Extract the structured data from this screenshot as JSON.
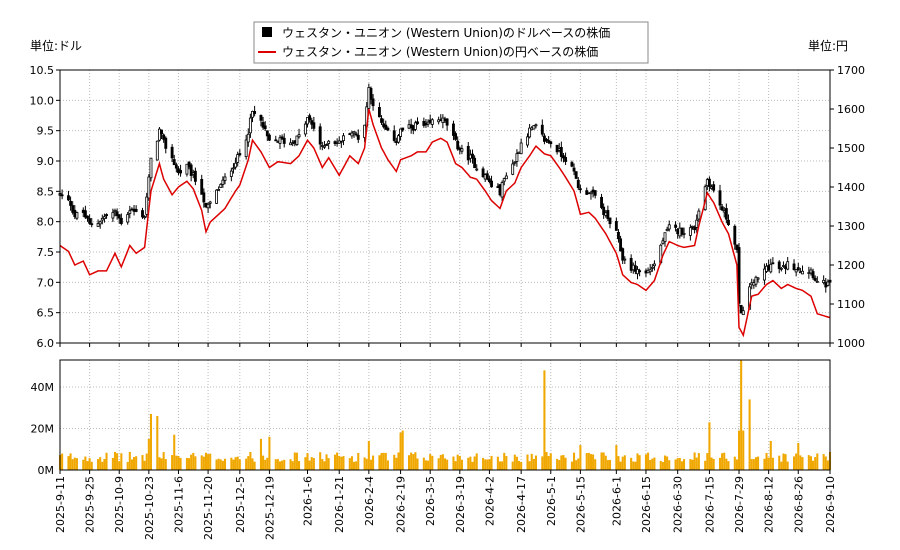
{
  "chart_data": {
    "type": "candlestick-with-volume",
    "legend": [
      {
        "name": "ウェスタン・ユニオン (Western Union)のドルベースの株価",
        "color": "#000000",
        "marker": "square"
      },
      {
        "name": "ウェスタン・ユニオン (Western Union)の円ベースの株価",
        "color": "#dd0000",
        "marker": "line"
      }
    ],
    "units": {
      "left": "単位:ドル",
      "right": "単位:円"
    },
    "price_axis": {
      "left_min": 6.0,
      "left_max": 10.5,
      "left_step": 0.5,
      "right_min": 1000,
      "right_max": 1700,
      "right_step": 100
    },
    "volume_axis": {
      "min": 0,
      "max": 53000000,
      "ticks": [
        {
          "value": 0,
          "label": "0M"
        },
        {
          "value": 20000000,
          "label": "20M"
        },
        {
          "value": 40000000,
          "label": "40M"
        }
      ]
    },
    "x_start": "2025-09-11",
    "x_end": "2026-09-10",
    "date_ticks": [
      "2025-9-11",
      "2025-9-25",
      "2025-10-9",
      "2025-10-23",
      "2025-11-6",
      "2025-11-20",
      "2025-12-5",
      "2025-12-19",
      "2026-1-6",
      "2026-1-21",
      "2026-2-4",
      "2026-2-19",
      "2026-3-5",
      "2026-3-19",
      "2026-4-2",
      "2026-4-17",
      "2026-5-1",
      "2026-5-15",
      "2026-6-1",
      "2026-6-15",
      "2026-6-30",
      "2026-7-15",
      "2026-7-29",
      "2026-8-12",
      "2026-8-26",
      "2026-9-10"
    ],
    "usd_close_path": [
      [
        "2025-09-11",
        8.45
      ],
      [
        "2025-09-16",
        8.3
      ],
      [
        "2025-09-18",
        8.1
      ],
      [
        "2025-09-22",
        8.15
      ],
      [
        "2025-09-25",
        7.95
      ],
      [
        "2025-09-29",
        8.0
      ],
      [
        "2025-10-03",
        8.1
      ],
      [
        "2025-10-07",
        8.15
      ],
      [
        "2025-10-10",
        8.0
      ],
      [
        "2025-10-14",
        8.2
      ],
      [
        "2025-10-17",
        8.15
      ],
      [
        "2025-10-21",
        8.1
      ],
      [
        "2025-10-24",
        9.0
      ],
      [
        "2025-10-28",
        9.5
      ],
      [
        "2025-10-30",
        9.3
      ],
      [
        "2025-11-03",
        9.05
      ],
      [
        "2025-11-06",
        8.8
      ],
      [
        "2025-11-10",
        8.9
      ],
      [
        "2025-11-13",
        8.75
      ],
      [
        "2025-11-17",
        8.5
      ],
      [
        "2025-11-19",
        8.2
      ],
      [
        "2025-11-21",
        8.3
      ],
      [
        "2025-11-25",
        8.55
      ],
      [
        "2025-11-28",
        8.7
      ],
      [
        "2025-12-03",
        9.0
      ],
      [
        "2025-12-05",
        9.1
      ],
      [
        "2025-12-09",
        9.5
      ],
      [
        "2025-12-11",
        9.8
      ],
      [
        "2025-12-15",
        9.65
      ],
      [
        "2025-12-19",
        9.3
      ],
      [
        "2025-12-23",
        9.35
      ],
      [
        "2025-12-29",
        9.3
      ],
      [
        "2026-01-02",
        9.4
      ],
      [
        "2026-01-06",
        9.7
      ],
      [
        "2026-01-09",
        9.55
      ],
      [
        "2026-01-13",
        9.2
      ],
      [
        "2026-01-16",
        9.35
      ],
      [
        "2026-01-21",
        9.3
      ],
      [
        "2026-01-26",
        9.5
      ],
      [
        "2026-01-30",
        9.4
      ],
      [
        "2026-02-02",
        9.6
      ],
      [
        "2026-02-04",
        10.2
      ],
      [
        "2026-02-06",
        9.95
      ],
      [
        "2026-02-10",
        9.6
      ],
      [
        "2026-02-13",
        9.45
      ],
      [
        "2026-02-17",
        9.35
      ],
      [
        "2026-02-19",
        9.5
      ],
      [
        "2026-02-24",
        9.55
      ],
      [
        "2026-02-27",
        9.6
      ],
      [
        "2026-03-03",
        9.55
      ],
      [
        "2026-03-06",
        9.65
      ],
      [
        "2026-03-10",
        9.7
      ],
      [
        "2026-03-13",
        9.6
      ],
      [
        "2026-03-17",
        9.3
      ],
      [
        "2026-03-20",
        9.15
      ],
      [
        "2026-03-24",
        9.05
      ],
      [
        "2026-03-27",
        8.9
      ],
      [
        "2026-03-31",
        8.75
      ],
      [
        "2026-04-03",
        8.6
      ],
      [
        "2026-04-07",
        8.5
      ],
      [
        "2026-04-10",
        8.8
      ],
      [
        "2026-04-14",
        9.0
      ],
      [
        "2026-04-17",
        9.3
      ],
      [
        "2026-04-21",
        9.5
      ],
      [
        "2026-04-24",
        9.55
      ],
      [
        "2026-04-28",
        9.35
      ],
      [
        "2026-05-01",
        9.3
      ],
      [
        "2026-05-05",
        9.15
      ],
      [
        "2026-05-08",
        9.05
      ],
      [
        "2026-05-12",
        8.8
      ],
      [
        "2026-05-15",
        8.5
      ],
      [
        "2026-05-19",
        8.5
      ],
      [
        "2026-05-22",
        8.4
      ],
      [
        "2026-05-27",
        8.1
      ],
      [
        "2026-06-01",
        7.8
      ],
      [
        "2026-06-04",
        7.4
      ],
      [
        "2026-06-08",
        7.25
      ],
      [
        "2026-06-11",
        7.2
      ],
      [
        "2026-06-15",
        7.15
      ],
      [
        "2026-06-19",
        7.3
      ],
      [
        "2026-06-23",
        7.7
      ],
      [
        "2026-06-26",
        7.9
      ],
      [
        "2026-06-30",
        7.85
      ],
      [
        "2026-07-03",
        7.85
      ],
      [
        "2026-07-08",
        7.9
      ],
      [
        "2026-07-10",
        8.2
      ],
      [
        "2026-07-14",
        8.7
      ],
      [
        "2026-07-17",
        8.5
      ],
      [
        "2026-07-21",
        8.2
      ],
      [
        "2026-07-24",
        8.0
      ],
      [
        "2026-07-28",
        7.5
      ],
      [
        "2026-07-29",
        6.6
      ],
      [
        "2026-07-31",
        6.5
      ],
      [
        "2026-08-04",
        7.0
      ],
      [
        "2026-08-07",
        7.05
      ],
      [
        "2026-08-11",
        7.25
      ],
      [
        "2026-08-14",
        7.3
      ],
      [
        "2026-08-18",
        7.2
      ],
      [
        "2026-08-21",
        7.3
      ],
      [
        "2026-08-25",
        7.25
      ],
      [
        "2026-08-28",
        7.2
      ],
      [
        "2026-09-01",
        7.2
      ],
      [
        "2026-09-04",
        7.0
      ],
      [
        "2026-09-10",
        6.95
      ]
    ],
    "jpy_close_path": [
      [
        "2025-09-11",
        1250
      ],
      [
        "2025-09-15",
        1235
      ],
      [
        "2025-09-18",
        1200
      ],
      [
        "2025-09-22",
        1210
      ],
      [
        "2025-09-25",
        1175
      ],
      [
        "2025-09-29",
        1185
      ],
      [
        "2025-10-03",
        1185
      ],
      [
        "2025-10-07",
        1230
      ],
      [
        "2025-10-10",
        1195
      ],
      [
        "2025-10-14",
        1250
      ],
      [
        "2025-10-17",
        1230
      ],
      [
        "2025-10-21",
        1245
      ],
      [
        "2025-10-24",
        1390
      ],
      [
        "2025-10-28",
        1460
      ],
      [
        "2025-10-30",
        1420
      ],
      [
        "2025-11-03",
        1380
      ],
      [
        "2025-11-06",
        1400
      ],
      [
        "2025-11-10",
        1415
      ],
      [
        "2025-11-13",
        1395
      ],
      [
        "2025-11-17",
        1340
      ],
      [
        "2025-11-19",
        1285
      ],
      [
        "2025-11-21",
        1310
      ],
      [
        "2025-11-25",
        1330
      ],
      [
        "2025-11-28",
        1345
      ],
      [
        "2025-12-03",
        1390
      ],
      [
        "2025-12-05",
        1405
      ],
      [
        "2025-12-09",
        1470
      ],
      [
        "2025-12-11",
        1520
      ],
      [
        "2025-12-15",
        1490
      ],
      [
        "2025-12-19",
        1450
      ],
      [
        "2025-12-23",
        1465
      ],
      [
        "2025-12-29",
        1460
      ],
      [
        "2026-01-02",
        1480
      ],
      [
        "2026-01-06",
        1520
      ],
      [
        "2026-01-09",
        1500
      ],
      [
        "2026-01-13",
        1450
      ],
      [
        "2026-01-16",
        1475
      ],
      [
        "2026-01-21",
        1430
      ],
      [
        "2026-01-26",
        1480
      ],
      [
        "2026-01-30",
        1460
      ],
      [
        "2026-02-02",
        1500
      ],
      [
        "2026-02-04",
        1600
      ],
      [
        "2026-02-06",
        1560
      ],
      [
        "2026-02-10",
        1500
      ],
      [
        "2026-02-13",
        1470
      ],
      [
        "2026-02-17",
        1440
      ],
      [
        "2026-02-19",
        1470
      ],
      [
        "2026-02-24",
        1480
      ],
      [
        "2026-02-27",
        1490
      ],
      [
        "2026-03-03",
        1490
      ],
      [
        "2026-03-06",
        1515
      ],
      [
        "2026-03-10",
        1525
      ],
      [
        "2026-03-13",
        1515
      ],
      [
        "2026-03-17",
        1460
      ],
      [
        "2026-03-20",
        1450
      ],
      [
        "2026-03-24",
        1425
      ],
      [
        "2026-03-27",
        1420
      ],
      [
        "2026-03-31",
        1390
      ],
      [
        "2026-04-03",
        1365
      ],
      [
        "2026-04-07",
        1345
      ],
      [
        "2026-04-10",
        1390
      ],
      [
        "2026-04-14",
        1410
      ],
      [
        "2026-04-17",
        1450
      ],
      [
        "2026-04-21",
        1480
      ],
      [
        "2026-04-24",
        1505
      ],
      [
        "2026-04-28",
        1485
      ],
      [
        "2026-05-01",
        1480
      ],
      [
        "2026-05-05",
        1450
      ],
      [
        "2026-05-08",
        1425
      ],
      [
        "2026-05-12",
        1390
      ],
      [
        "2026-05-15",
        1330
      ],
      [
        "2026-05-19",
        1335
      ],
      [
        "2026-05-22",
        1320
      ],
      [
        "2026-05-27",
        1280
      ],
      [
        "2026-06-01",
        1230
      ],
      [
        "2026-06-04",
        1175
      ],
      [
        "2026-06-08",
        1155
      ],
      [
        "2026-06-11",
        1150
      ],
      [
        "2026-06-15",
        1135
      ],
      [
        "2026-06-19",
        1160
      ],
      [
        "2026-06-23",
        1225
      ],
      [
        "2026-06-26",
        1260
      ],
      [
        "2026-06-30",
        1250
      ],
      [
        "2026-07-03",
        1245
      ],
      [
        "2026-07-08",
        1250
      ],
      [
        "2026-07-10",
        1300
      ],
      [
        "2026-07-14",
        1385
      ],
      [
        "2026-07-17",
        1360
      ],
      [
        "2026-07-21",
        1310
      ],
      [
        "2026-07-24",
        1280
      ],
      [
        "2026-07-28",
        1200
      ],
      [
        "2026-07-29",
        1040
      ],
      [
        "2026-07-31",
        1020
      ],
      [
        "2026-08-04",
        1120
      ],
      [
        "2026-08-07",
        1125
      ],
      [
        "2026-08-11",
        1150
      ],
      [
        "2026-08-14",
        1160
      ],
      [
        "2026-08-18",
        1140
      ],
      [
        "2026-08-21",
        1150
      ],
      [
        "2026-08-25",
        1140
      ],
      [
        "2026-08-28",
        1135
      ],
      [
        "2026-09-01",
        1120
      ],
      [
        "2026-09-04",
        1075
      ],
      [
        "2026-09-10",
        1065
      ]
    ],
    "volume_baseline": 7000000,
    "volume_spikes": [
      [
        "2025-10-24",
        27000000
      ],
      [
        "2025-10-27",
        26000000
      ],
      [
        "2025-10-23",
        15000000
      ],
      [
        "2025-11-04",
        17000000
      ],
      [
        "2025-12-15",
        15000000
      ],
      [
        "2025-12-19",
        16000000
      ],
      [
        "2026-02-04",
        14000000
      ],
      [
        "2026-02-19",
        18000000
      ],
      [
        "2026-02-20",
        19000000
      ],
      [
        "2026-04-28",
        48000000
      ],
      [
        "2026-05-15",
        12000000
      ],
      [
        "2026-06-01",
        12000000
      ],
      [
        "2026-07-15",
        23000000
      ],
      [
        "2026-07-29",
        19000000
      ],
      [
        "2026-07-30",
        53000000
      ],
      [
        "2026-07-31",
        19000000
      ],
      [
        "2026-08-03",
        34000000
      ],
      [
        "2026-08-13",
        14000000
      ],
      [
        "2026-08-26",
        13000000
      ]
    ],
    "grid": true
  }
}
